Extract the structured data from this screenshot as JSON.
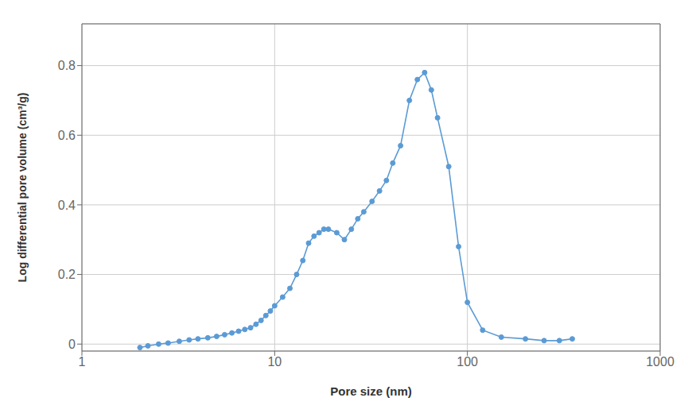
{
  "chart_data": {
    "type": "line",
    "xlabel": "Pore size (nm)",
    "ylabel": "Log differential pore volume (cm³/g)",
    "log": "x",
    "xlim": [
      1,
      1000
    ],
    "xticks": [
      1,
      10,
      100,
      1000
    ],
    "ylim": [
      -0.02,
      0.92
    ],
    "yticks": [
      0,
      0.2,
      0.4,
      0.6,
      0.8
    ],
    "grid": true,
    "color": "#5b9bd5",
    "marker": "circle",
    "x": [
      2.0,
      2.2,
      2.5,
      2.8,
      3.2,
      3.6,
      4.0,
      4.5,
      5.0,
      5.5,
      6.0,
      6.5,
      7.0,
      7.5,
      8.0,
      8.5,
      9.0,
      9.5,
      10.0,
      11.0,
      12.0,
      13.0,
      14.0,
      15.0,
      16.0,
      17.0,
      18.0,
      19.0,
      21.0,
      23.0,
      25.0,
      27.0,
      29.0,
      32.0,
      35.0,
      38.0,
      41.0,
      45.0,
      50.0,
      55.0,
      60.0,
      65.0,
      70.0,
      80.0,
      90.0,
      100.0,
      120.0,
      150.0,
      200.0,
      250.0,
      300.0,
      350.0
    ],
    "values": [
      -0.01,
      -0.005,
      0.0,
      0.003,
      0.008,
      0.012,
      0.015,
      0.018,
      0.022,
      0.027,
      0.032,
      0.037,
      0.042,
      0.047,
      0.057,
      0.068,
      0.082,
      0.095,
      0.11,
      0.135,
      0.16,
      0.2,
      0.24,
      0.29,
      0.31,
      0.32,
      0.33,
      0.33,
      0.32,
      0.3,
      0.33,
      0.36,
      0.38,
      0.41,
      0.44,
      0.47,
      0.52,
      0.57,
      0.7,
      0.76,
      0.78,
      0.73,
      0.65,
      0.51,
      0.28,
      0.12,
      0.04,
      0.02,
      0.015,
      0.01,
      0.01,
      0.015
    ]
  }
}
